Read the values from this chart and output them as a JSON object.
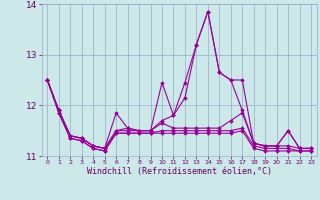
{
  "series": [
    [
      12.5,
      11.9,
      11.4,
      11.35,
      11.2,
      11.15,
      11.85,
      11.55,
      11.5,
      11.5,
      12.45,
      11.8,
      12.15,
      13.2,
      13.85,
      12.65,
      12.5,
      11.9,
      11.25,
      11.2,
      11.2,
      11.5,
      11.15,
      11.15
    ],
    [
      12.5,
      11.9,
      11.4,
      11.35,
      11.2,
      11.15,
      11.5,
      11.55,
      11.5,
      11.5,
      11.7,
      11.8,
      12.45,
      13.2,
      13.85,
      12.65,
      12.5,
      12.5,
      11.25,
      11.2,
      11.2,
      11.2,
      11.15,
      11.15
    ],
    [
      12.5,
      11.9,
      11.4,
      11.35,
      11.2,
      11.15,
      11.5,
      11.5,
      11.5,
      11.5,
      11.65,
      11.55,
      11.55,
      11.55,
      11.55,
      11.55,
      11.7,
      11.85,
      11.25,
      11.2,
      11.2,
      11.5,
      11.15,
      11.15
    ],
    [
      12.5,
      11.85,
      11.35,
      11.3,
      11.15,
      11.1,
      11.45,
      11.45,
      11.45,
      11.45,
      11.5,
      11.5,
      11.5,
      11.5,
      11.5,
      11.5,
      11.5,
      11.55,
      11.2,
      11.15,
      11.15,
      11.15,
      11.1,
      11.1
    ],
    [
      12.5,
      11.85,
      11.35,
      11.3,
      11.15,
      11.1,
      11.45,
      11.45,
      11.45,
      11.45,
      11.45,
      11.45,
      11.45,
      11.45,
      11.45,
      11.45,
      11.45,
      11.5,
      11.15,
      11.1,
      11.1,
      11.1,
      11.1,
      11.1
    ]
  ],
  "color": "#990099",
  "bg_color": "#cce8e8",
  "grid_color": "#99aacc",
  "xlabel": "Windchill (Refroidissement éolien,°C)",
  "xlabel_color": "#660066",
  "tick_color": "#660066",
  "ylim": [
    11.0,
    14.0
  ],
  "xlim_min": -0.5,
  "xlim_max": 23.5,
  "yticks": [
    11,
    12,
    13,
    14
  ],
  "xticks": [
    0,
    1,
    2,
    3,
    4,
    5,
    6,
    7,
    8,
    9,
    10,
    11,
    12,
    13,
    14,
    15,
    16,
    17,
    18,
    19,
    20,
    21,
    22,
    23
  ],
  "marker": "D",
  "markersize": 1.8,
  "linewidth": 0.8,
  "figwidth": 3.2,
  "figheight": 2.0,
  "dpi": 100
}
